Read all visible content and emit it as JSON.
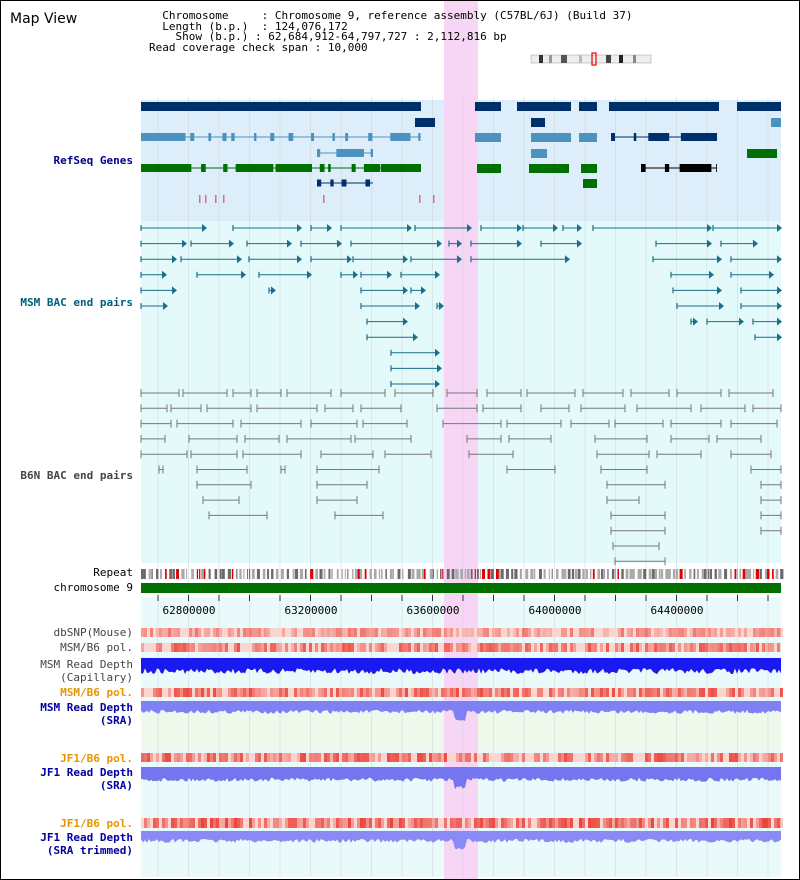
{
  "title": "Map View",
  "info": {
    "chromosome_label": "Chromosome",
    "chromosome_value": "Chromosome 9, reference assembly (C57BL/6J) (Build 37)",
    "length_label": "Length (b.p.)",
    "length_value": "124,076,172",
    "show_label": "Show (b.p.)",
    "show_value": "62,684,912-64,797,727 : 2,112,816 bp",
    "span_label": "Read coverage check span",
    "span_value": "10,000"
  },
  "tracks": {
    "refseq": "RefSeq Genes",
    "msm_bac": "MSM BAC end pairs",
    "b6n_bac": "B6N BAC end pairs",
    "repeat": "Repeat",
    "chromosome": "chromosome 9",
    "dbsnp": "dbSNP(Mouse)",
    "msm_pol1": "MSM/B6 pol.",
    "msm_depth_cap_1": "MSM Read Depth",
    "msm_depth_cap_2": "(Capillary)",
    "msm_pol2": "MSM/B6 pol.",
    "msm_depth_sra_1": "MSM Read Depth",
    "msm_depth_sra_2": "(SRA)",
    "jf1_pol1": "JF1/B6 pol.",
    "jf1_depth_sra_1": "JF1 Read Depth",
    "jf1_depth_sra_2": "(SRA)",
    "jf1_pol2": "JF1/B6 pol.",
    "jf1_depth_trim_1": "JF1 Read Depth",
    "jf1_depth_trim_2": "(SRA trimmed)"
  },
  "axis_ticks": [
    "62800000",
    "63200000",
    "63600000",
    "64000000",
    "64400000"
  ],
  "colors": {
    "refseq_bg": "#ddeefa",
    "msm_bg": "#e4fafa",
    "highlight": "#f6d6f4",
    "navy": "#00306a",
    "steel": "#4c92be",
    "green": "#007000",
    "teal_line": "#1a6f8a",
    "gray_line": "#777777"
  }
}
